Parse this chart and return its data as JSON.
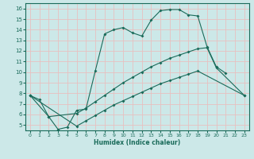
{
  "title": "",
  "xlabel": "Humidex (Indice chaleur)",
  "xlim": [
    -0.5,
    23.5
  ],
  "ylim": [
    4.5,
    16.5
  ],
  "xticks": [
    0,
    1,
    2,
    3,
    4,
    5,
    6,
    7,
    8,
    9,
    10,
    11,
    12,
    13,
    14,
    15,
    16,
    17,
    18,
    19,
    20,
    21,
    22,
    23
  ],
  "yticks": [
    5,
    6,
    7,
    8,
    9,
    10,
    11,
    12,
    13,
    14,
    15,
    16
  ],
  "background_color": "#cce8e8",
  "grid_color": "#e8c0c0",
  "line_color": "#1a6b5a",
  "line1_x": [
    0,
    1,
    2,
    3,
    4,
    5,
    6,
    7,
    8,
    9,
    10,
    11,
    12,
    13,
    14,
    15,
    16,
    17,
    18,
    19,
    20,
    21
  ],
  "line1_y": [
    7.8,
    7.4,
    5.8,
    4.6,
    4.8,
    6.4,
    6.5,
    10.1,
    13.6,
    14.0,
    14.2,
    13.7,
    13.4,
    14.9,
    15.8,
    15.9,
    15.9,
    15.4,
    15.3,
    12.4,
    10.5,
    9.9
  ],
  "line2_x": [
    0,
    2,
    5,
    6,
    7,
    8,
    9,
    10,
    11,
    12,
    13,
    14,
    15,
    16,
    17,
    18,
    19,
    20,
    23
  ],
  "line2_y": [
    7.8,
    5.8,
    6.1,
    6.6,
    7.2,
    7.8,
    8.4,
    9.0,
    9.5,
    10.0,
    10.5,
    10.9,
    11.3,
    11.6,
    11.9,
    12.2,
    12.3,
    10.4,
    7.8
  ],
  "line3_x": [
    0,
    5,
    6,
    7,
    8,
    9,
    10,
    11,
    12,
    13,
    14,
    15,
    16,
    17,
    18,
    23
  ],
  "line3_y": [
    7.8,
    4.9,
    5.4,
    5.9,
    6.4,
    6.9,
    7.3,
    7.7,
    8.1,
    8.5,
    8.9,
    9.2,
    9.5,
    9.8,
    10.1,
    7.8
  ]
}
